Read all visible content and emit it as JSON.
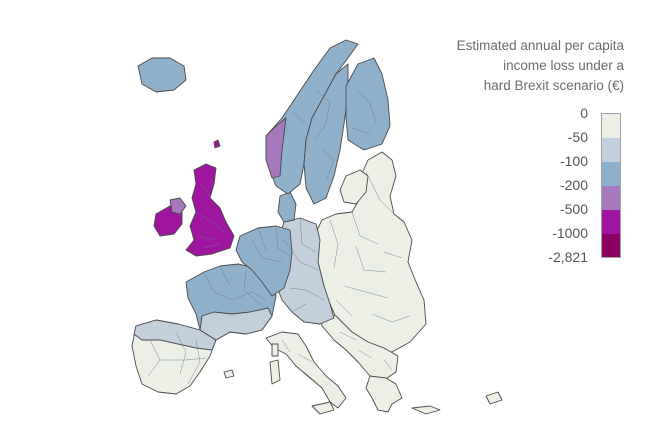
{
  "legend": {
    "title_lines": [
      "Estimated annual per capita",
      "income loss under a",
      "hard Brexit scenario (€)"
    ],
    "ticks": [
      "0",
      "-50",
      "-100",
      "-200",
      "-500",
      "-1000",
      "-2,821"
    ],
    "bins": [
      {
        "from": "0",
        "to": "-50",
        "color": "#ebefe6"
      },
      {
        "from": "-50",
        "to": "-100",
        "color": "#c3cfdb"
      },
      {
        "from": "-100",
        "to": "-200",
        "color": "#8fb0ca"
      },
      {
        "from": "-200",
        "to": "-500",
        "color": "#a678bd"
      },
      {
        "from": "-500",
        "to": "-1000",
        "color": "#a0159f"
      },
      {
        "from": "-1000",
        "to": "-2,821",
        "color": "#8a0063"
      }
    ]
  },
  "colors": {
    "sea": "#ffffff",
    "border": "#4a4a4a"
  },
  "map_regions": [
    {
      "name": "iceland",
      "bin": "-100 to -200"
    },
    {
      "name": "norway",
      "bin": "-100 to -200"
    },
    {
      "name": "west-norway",
      "bin": "-200 to -500"
    },
    {
      "name": "sweden",
      "bin": "-100 to -200"
    },
    {
      "name": "finland",
      "bin": "-100 to -200"
    },
    {
      "name": "great-britain",
      "bin": "-500 to -1000"
    },
    {
      "name": "ireland",
      "bin": "-500 to -1000"
    },
    {
      "name": "northern-ireland",
      "bin": "-200 to -500"
    },
    {
      "name": "denmark",
      "bin": "-100 to -200"
    },
    {
      "name": "benelux-west-germany",
      "bin": "-100 to -200"
    },
    {
      "name": "france",
      "bin": "-100 to -200"
    },
    {
      "name": "central-europe",
      "bin": "-50 to -100"
    },
    {
      "name": "eastern-europe",
      "bin": "0 to -50"
    },
    {
      "name": "iberia",
      "bin": "0 to -50"
    },
    {
      "name": "italy",
      "bin": "0 to -50"
    },
    {
      "name": "balkans",
      "bin": "0 to -50"
    },
    {
      "name": "greece",
      "bin": "0 to -50"
    }
  ]
}
